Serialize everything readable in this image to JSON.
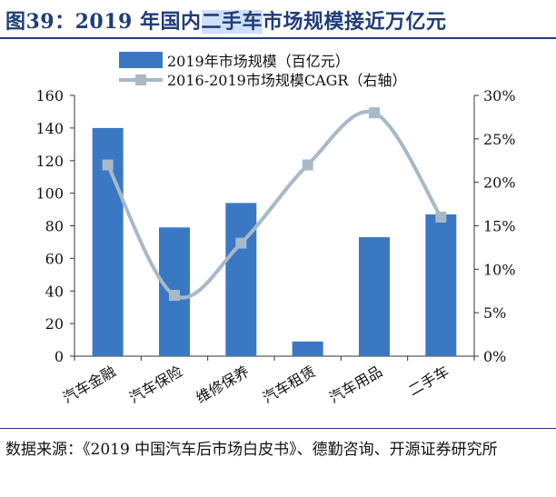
{
  "figure": {
    "title_prefix": "图39：2019 年国内",
    "title_highlight": "二手车",
    "title_suffix": "市场规模接近万亿元",
    "source": "数据来源：《2019 中国汽车后市场白皮书》、德勤咨询、开源证券研究所"
  },
  "chart_data": {
    "type": "bar",
    "categories": [
      "汽车金融",
      "汽车保险",
      "维修保养",
      "汽车租赁",
      "汽车用品",
      "二手车"
    ],
    "series": [
      {
        "name": "2019年市场规模（百亿元）",
        "type": "bar",
        "axis": "left",
        "values": [
          140,
          79,
          94,
          9,
          73,
          87
        ],
        "color": "#3a78c4"
      },
      {
        "name": "2016-2019市场规模CAGR（右轴）",
        "type": "line",
        "axis": "right",
        "values": [
          22,
          7,
          13,
          22,
          28,
          16
        ],
        "unit": "%",
        "color": "#a7b9c9"
      }
    ],
    "ylim": [
      0,
      160
    ],
    "yticks": [
      "0",
      "20",
      "40",
      "60",
      "80",
      "100",
      "120",
      "140",
      "160"
    ],
    "y2lim": [
      0,
      30
    ],
    "y2ticks": [
      "0%",
      "5%",
      "10%",
      "15%",
      "20%",
      "25%",
      "30%"
    ],
    "legend_position": "top-left",
    "grid": false
  }
}
